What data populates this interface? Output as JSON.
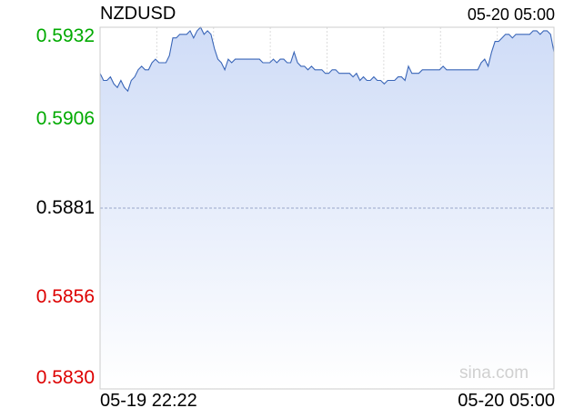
{
  "header": {
    "symbol": "NZDUSD",
    "timestamp": "05-20 05:00"
  },
  "watermark": "sina.com",
  "colors": {
    "up": "#00aa00",
    "down": "#dd0000",
    "neutral": "#000000",
    "line": "#3a66b8",
    "fill_top": "#cfdcf7",
    "fill_bottom": "#ffffff",
    "grid": "#dcdcdc",
    "baseline": "#9aa6c8"
  },
  "chart_data": {
    "type": "area",
    "title": "NZDUSD",
    "xlabel": "",
    "ylabel": "",
    "ylim": [
      0.583,
      0.5932
    ],
    "baseline": 0.5881,
    "y_ticks": [
      {
        "label": "0.5932",
        "value": 0.5932,
        "status": "up"
      },
      {
        "label": "0.5906",
        "value": 0.5906,
        "status": "up"
      },
      {
        "label": "0.5881",
        "value": 0.5881,
        "status": "neutral"
      },
      {
        "label": "0.5856",
        "value": 0.5856,
        "status": "down"
      },
      {
        "label": "0.5830",
        "value": 0.583,
        "status": "down"
      }
    ],
    "x_start": "05-19 22:22",
    "x_end": "05-20 05:00",
    "grid": true,
    "series": [
      {
        "values": [
          0.5919,
          0.5917,
          0.5917,
          0.5918,
          0.5916,
          0.5915,
          0.5917,
          0.5915,
          0.5914,
          0.5917,
          0.5918,
          0.592,
          0.5921,
          0.592,
          0.592,
          0.5922,
          0.5923,
          0.5922,
          0.5922,
          0.5922,
          0.5924,
          0.5929,
          0.5929,
          0.593,
          0.593,
          0.593,
          0.5931,
          0.5929,
          0.5931,
          0.5932,
          0.593,
          0.5931,
          0.593,
          0.5926,
          0.5923,
          0.5922,
          0.592,
          0.5923,
          0.5922,
          0.5923,
          0.5923,
          0.5923,
          0.5923,
          0.5923,
          0.5923,
          0.5923,
          0.5923,
          0.5922,
          0.5922,
          0.5922,
          0.5923,
          0.5922,
          0.5923,
          0.5923,
          0.5922,
          0.5922,
          0.5925,
          0.5922,
          0.5921,
          0.5921,
          0.592,
          0.5921,
          0.592,
          0.592,
          0.592,
          0.5919,
          0.5919,
          0.592,
          0.592,
          0.5919,
          0.5919,
          0.5919,
          0.5919,
          0.5918,
          0.5919,
          0.5917,
          0.5918,
          0.5917,
          0.5917,
          0.5918,
          0.5917,
          0.5917,
          0.5916,
          0.5917,
          0.5917,
          0.5917,
          0.5918,
          0.5918,
          0.5917,
          0.5921,
          0.5919,
          0.5919,
          0.5919,
          0.592,
          0.592,
          0.592,
          0.592,
          0.592,
          0.592,
          0.5921,
          0.592,
          0.592,
          0.592,
          0.592,
          0.592,
          0.592,
          0.592,
          0.592,
          0.592,
          0.592,
          0.5922,
          0.5923,
          0.5921,
          0.5925,
          0.5928,
          0.5928,
          0.5929,
          0.593,
          0.593,
          0.5929,
          0.593,
          0.593,
          0.593,
          0.593,
          0.593,
          0.5931,
          0.5931,
          0.593,
          0.5931,
          0.5931,
          0.593,
          0.5925
        ]
      }
    ]
  }
}
